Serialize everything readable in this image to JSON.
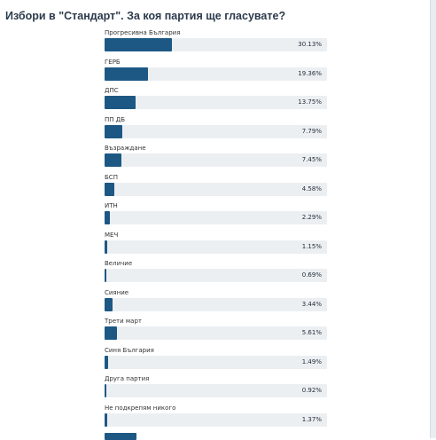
{
  "poll": {
    "title": "Избори в \"Стандарт\". За коя партия ще гласувате?",
    "options": [
      {
        "label": "Прогресивна България",
        "percent": "30.13%",
        "value": 30.13
      },
      {
        "label": "ГЕРБ",
        "percent": "19.36%",
        "value": 19.36
      },
      {
        "label": "ДПС",
        "percent": "13.75%",
        "value": 13.75
      },
      {
        "label": "ПП ДБ",
        "percent": "7.79%",
        "value": 7.79
      },
      {
        "label": "Възраждане",
        "percent": "7.45%",
        "value": 7.45
      },
      {
        "label": "БСП",
        "percent": "4.58%",
        "value": 4.58
      },
      {
        "label": "ИТН",
        "percent": "2.29%",
        "value": 2.29
      },
      {
        "label": "МЕЧ",
        "percent": "1.15%",
        "value": 1.15
      },
      {
        "label": "Величие",
        "percent": "0.69%",
        "value": 0.69
      },
      {
        "label": "Сияние",
        "percent": "3.44%",
        "value": 3.44
      },
      {
        "label": "Трети март",
        "percent": "5.61%",
        "value": 5.61
      },
      {
        "label": "Синя България",
        "percent": "1.49%",
        "value": 1.49
      },
      {
        "label": "Друга партия",
        "percent": "0.92%",
        "value": 0.92
      },
      {
        "label": "Не подкрепям никого",
        "percent": "1.37%",
        "value": 1.37
      }
    ]
  },
  "colors": {
    "bar_fill": "#1d5884",
    "track": "#eceff2",
    "title": "#2c3a4b"
  }
}
